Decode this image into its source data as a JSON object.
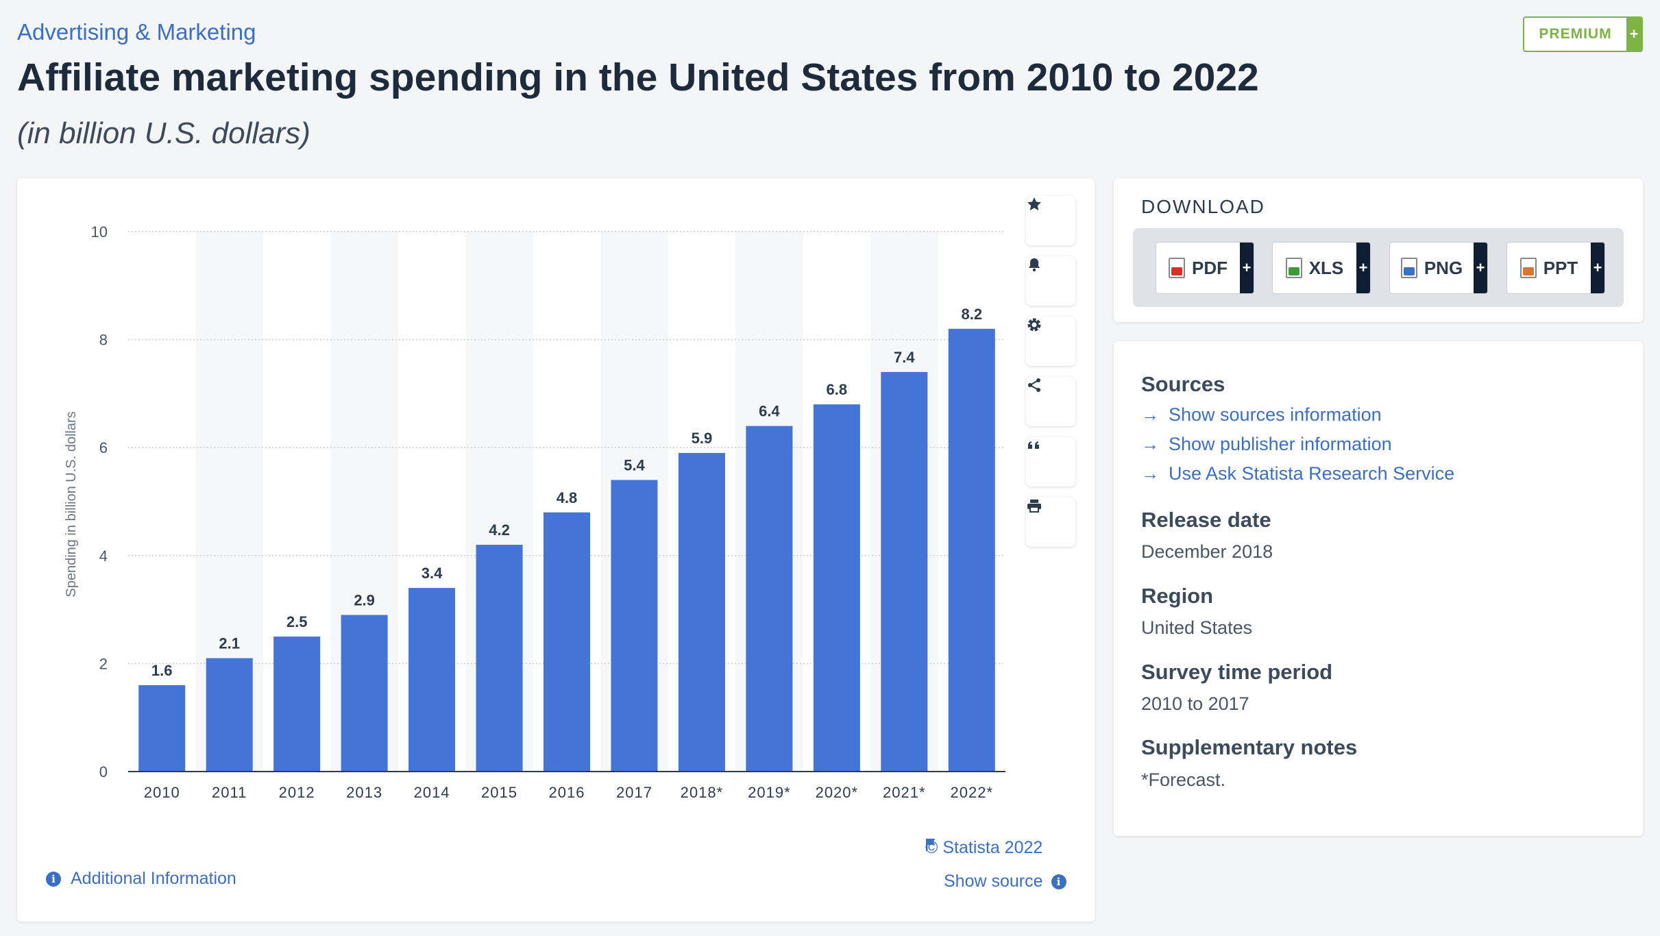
{
  "header": {
    "breadcrumb": "Advertising & Marketing",
    "premium_label": "PREMIUM",
    "premium_plus": "+",
    "title": "Affiliate marketing spending in the United States from 2010 to 2022",
    "subtitle": "(in billion U.S. dollars)"
  },
  "chart_data": {
    "type": "bar",
    "categories": [
      "2010",
      "2011",
      "2012",
      "2013",
      "2014",
      "2015",
      "2016",
      "2017",
      "2018*",
      "2019*",
      "2020*",
      "2021*",
      "2022*"
    ],
    "values": [
      1.6,
      2.1,
      2.5,
      2.9,
      3.4,
      4.2,
      4.8,
      5.4,
      5.9,
      6.4,
      6.8,
      7.4,
      8.2
    ],
    "value_labels": [
      "1.6",
      "2.1",
      "2.5",
      "2.9",
      "3.4",
      "4.2",
      "4.8",
      "5.4",
      "5.9",
      "6.4",
      "6.8",
      "7.4",
      "8.2"
    ],
    "ylabel": "Spending in billion U.S. dollars",
    "ylim": [
      0,
      10
    ],
    "yticks": [
      0,
      2,
      4,
      6,
      8,
      10
    ],
    "bar_color": "#4474d6",
    "grid": true
  },
  "chart_tools": {
    "icons": [
      "star-icon",
      "bell-icon",
      "gear-icon",
      "share-icon",
      "quote-icon",
      "print-icon"
    ]
  },
  "chart_footer": {
    "copyright": "© Statista 2022",
    "show_source": "Show source",
    "additional_info": "Additional Information"
  },
  "download": {
    "title": "DOWNLOAD",
    "buttons": [
      {
        "label": "PDF",
        "color": "#d9302c"
      },
      {
        "label": "XLS",
        "color": "#3c9a3c"
      },
      {
        "label": "PNG",
        "color": "#3a6fc4"
      },
      {
        "label": "PPT",
        "color": "#e0742c"
      }
    ],
    "plus": "+"
  },
  "info": {
    "sources_title": "Sources",
    "links": [
      "Show sources information",
      "Show publisher information",
      "Use Ask Statista Research Service"
    ],
    "release_title": "Release date",
    "release_value": "December 2018",
    "region_title": "Region",
    "region_value": "United States",
    "survey_title": "Survey time period",
    "survey_value": "2010 to 2017",
    "notes_title": "Supplementary notes",
    "notes_value": "*Forecast."
  },
  "colors": {
    "accent": "#3a6fc4",
    "premium": "#7cb342",
    "bar": "#4474d6"
  }
}
